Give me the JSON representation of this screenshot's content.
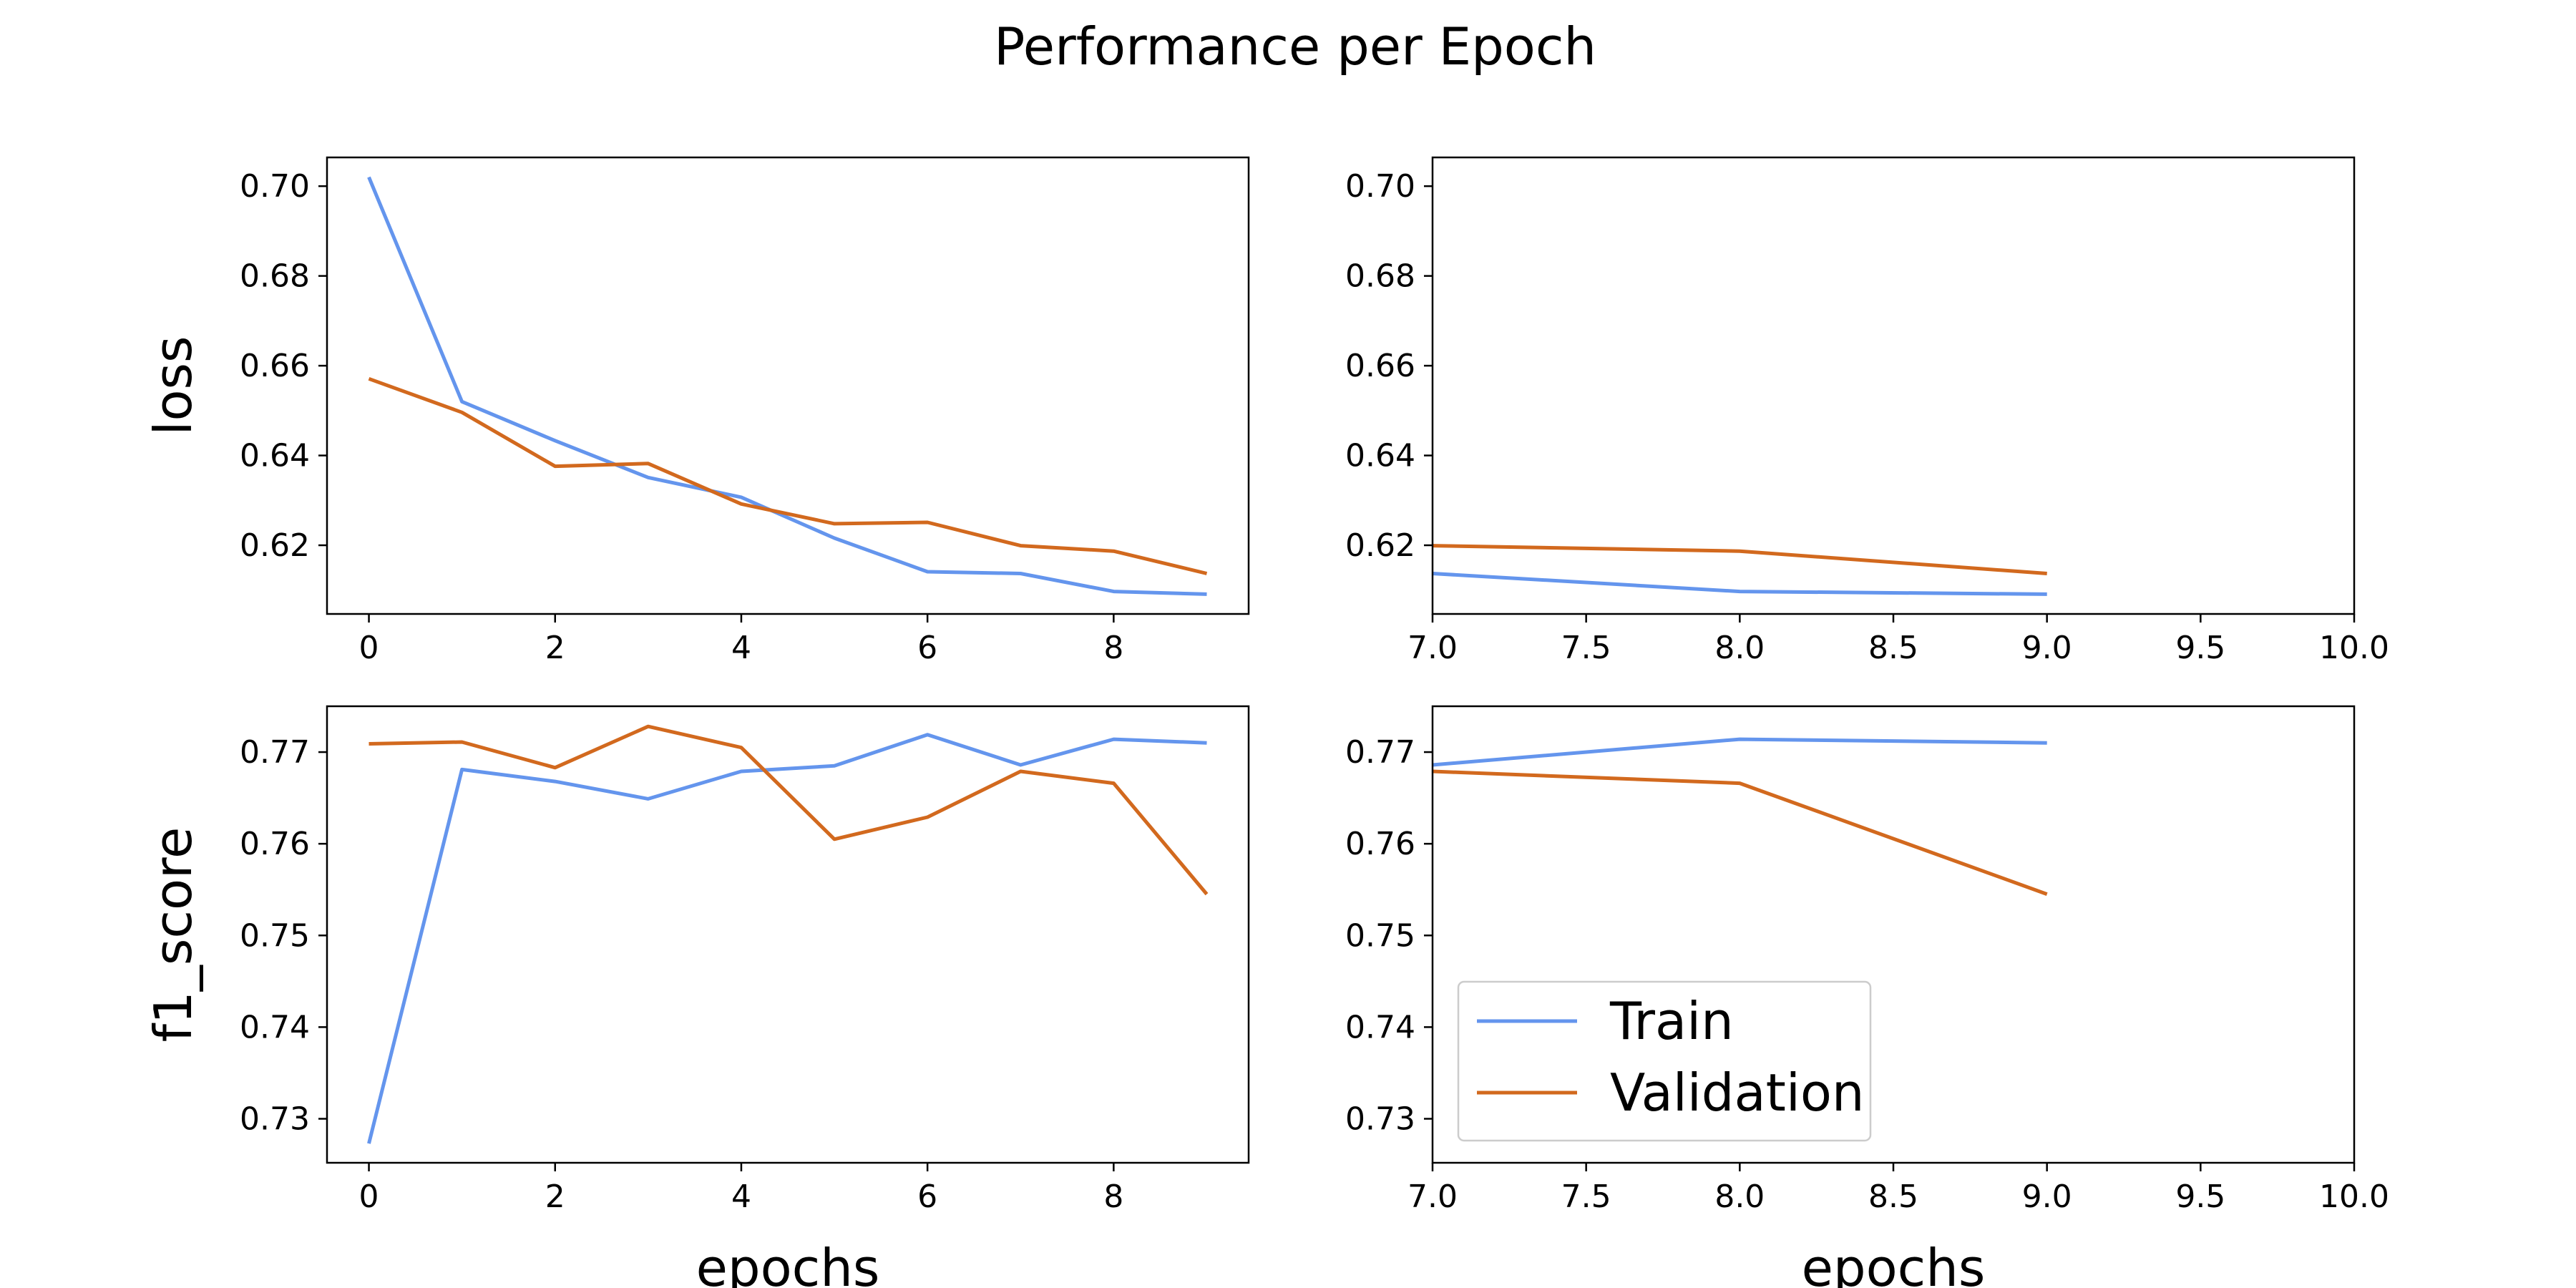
{
  "figure": {
    "suptitle": "Performance per Epoch"
  },
  "colors": {
    "train": "#6495ED",
    "validation": "#D2691E",
    "axes": "#000000",
    "legend_border": "#cccccc"
  },
  "legend": {
    "placement": "lower-left",
    "entries": [
      "Train",
      "Validation"
    ]
  },
  "chart_data": [
    {
      "id": "loss-full",
      "type": "line",
      "ylabel": "loss",
      "xlabel": "",
      "xlim": [
        -0.45,
        9.45
      ],
      "ylim": [
        0.6047,
        0.7064
      ],
      "xticks": [
        0,
        2,
        4,
        6,
        8
      ],
      "xtick_labels": [
        "0",
        "2",
        "4",
        "6",
        "8"
      ],
      "yticks": [
        0.62,
        0.64,
        0.66,
        0.68,
        0.7
      ],
      "ytick_labels": [
        "0.62",
        "0.64",
        "0.66",
        "0.68",
        "0.70"
      ],
      "x": [
        0,
        1,
        2,
        3,
        4,
        5,
        6,
        7,
        8,
        9
      ],
      "series": [
        {
          "name": "Train",
          "values": [
            0.702,
            0.652,
            0.6433,
            0.6351,
            0.6307,
            0.6216,
            0.6141,
            0.6137,
            0.6097,
            0.6091
          ]
        },
        {
          "name": "Validation",
          "values": [
            0.6571,
            0.6496,
            0.6376,
            0.6382,
            0.6292,
            0.6248,
            0.6251,
            0.6199,
            0.6187,
            0.6137
          ]
        }
      ]
    },
    {
      "id": "loss-zoom",
      "type": "line",
      "ylabel": "",
      "xlabel": "",
      "xlim": [
        7,
        10
      ],
      "ylim": [
        0.6047,
        0.7064
      ],
      "xticks": [
        7.0,
        7.5,
        8.0,
        8.5,
        9.0,
        9.5,
        10.0
      ],
      "xtick_labels": [
        "7.0",
        "7.5",
        "8.0",
        "8.5",
        "9.0",
        "9.5",
        "10.0"
      ],
      "yticks": [
        0.62,
        0.64,
        0.66,
        0.68,
        0.7
      ],
      "ytick_labels": [
        "0.62",
        "0.64",
        "0.66",
        "0.68",
        "0.70"
      ],
      "x": [
        7,
        8,
        9
      ],
      "series": [
        {
          "name": "Train",
          "values": [
            0.6137,
            0.6097,
            0.6091
          ]
        },
        {
          "name": "Validation",
          "values": [
            0.6199,
            0.6187,
            0.6137
          ]
        }
      ]
    },
    {
      "id": "f1-full",
      "type": "line",
      "ylabel": "f1_score",
      "xlabel": "epochs",
      "xlim": [
        -0.45,
        9.45
      ],
      "ylim": [
        0.7252,
        0.775
      ],
      "xticks": [
        0,
        2,
        4,
        6,
        8
      ],
      "xtick_labels": [
        "0",
        "2",
        "4",
        "6",
        "8"
      ],
      "yticks": [
        0.73,
        0.74,
        0.75,
        0.76,
        0.77
      ],
      "ytick_labels": [
        "0.73",
        "0.74",
        "0.75",
        "0.76",
        "0.77"
      ],
      "x": [
        0,
        1,
        2,
        3,
        4,
        5,
        6,
        7,
        8,
        9
      ],
      "series": [
        {
          "name": "Train",
          "values": [
            0.7273,
            0.7681,
            0.7668,
            0.7649,
            0.7679,
            0.7685,
            0.7719,
            0.7686,
            0.7714,
            0.771
          ]
        },
        {
          "name": "Validation",
          "values": [
            0.7709,
            0.7711,
            0.7683,
            0.7728,
            0.7705,
            0.7605,
            0.7629,
            0.7679,
            0.7666,
            0.7545
          ]
        }
      ]
    },
    {
      "id": "f1-zoom",
      "type": "line",
      "ylabel": "",
      "xlabel": "epochs",
      "xlim": [
        7,
        10
      ],
      "ylim": [
        0.7252,
        0.775
      ],
      "xticks": [
        7.0,
        7.5,
        8.0,
        8.5,
        9.0,
        9.5,
        10.0
      ],
      "xtick_labels": [
        "7.0",
        "7.5",
        "8.0",
        "8.5",
        "9.0",
        "9.5",
        "10.0"
      ],
      "yticks": [
        0.73,
        0.74,
        0.75,
        0.76,
        0.77
      ],
      "ytick_labels": [
        "0.73",
        "0.74",
        "0.75",
        "0.76",
        "0.77"
      ],
      "x": [
        7,
        8,
        9
      ],
      "series": [
        {
          "name": "Train",
          "values": [
            0.7686,
            0.7714,
            0.771
          ]
        },
        {
          "name": "Validation",
          "values": [
            0.7679,
            0.7666,
            0.7545
          ]
        }
      ],
      "legend": true
    }
  ]
}
